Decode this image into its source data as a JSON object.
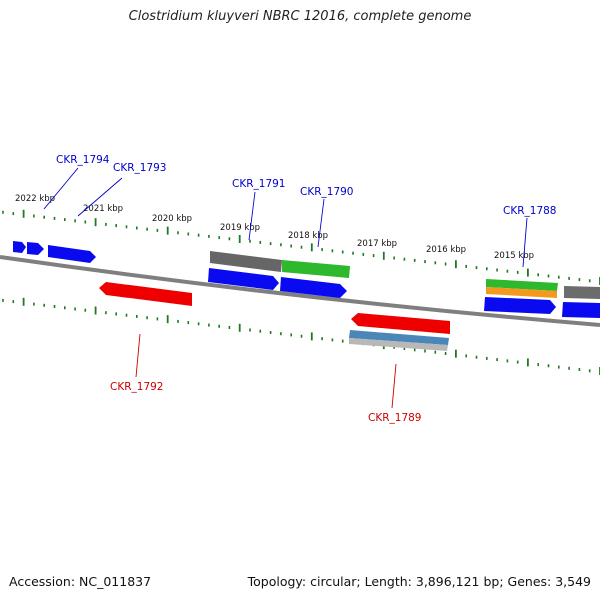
{
  "title": "Clostridium kluyveri NBRC 12016, complete genome",
  "footer": {
    "accession": "Accession: NC_011837",
    "summary": "Topology: circular; Length: 3,896,121 bp; Genes: 3,549"
  },
  "colors": {
    "backbone": "#7f7f7f",
    "tick": "#1f7a1f",
    "forward_label": "#0000cc",
    "reverse_label": "#cc0000",
    "cds_blue": "#0a0af0",
    "cds_red": "#ee0000",
    "gray": "#6c6c6c",
    "green": "#2db82d",
    "orange": "#f39a1e",
    "steel": "#4a86b8",
    "silver": "#b8b8b8"
  },
  "scale_labels": [
    "2022 kbp",
    "2021 kbp",
    "2020 kbp",
    "2019 kbp",
    "2018 kbp",
    "2017 kbp",
    "2016 kbp",
    "2015 kbp"
  ],
  "gene_labels": {
    "top": [
      "CKR_1794",
      "CKR_1793",
      "CKR_1791",
      "CKR_1790",
      "CKR_1788"
    ],
    "bottom": [
      "CKR_1792",
      "CKR_1789"
    ]
  }
}
